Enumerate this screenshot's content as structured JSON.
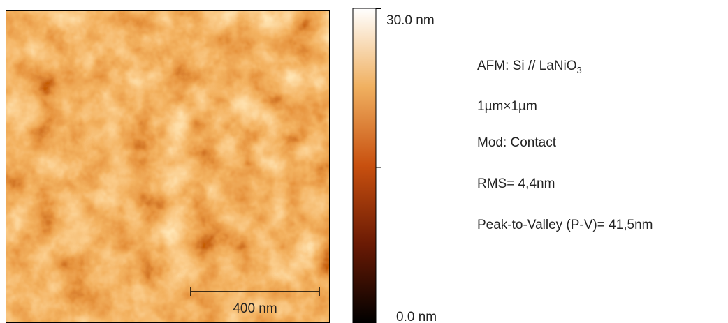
{
  "image": {
    "scale_bar_label": "400 nm"
  },
  "colorbar": {
    "max_label": "30.0 nm",
    "min_label": "0.0 nm"
  },
  "info": [
    {
      "text": "AFM: Si // LaNiO",
      "subscript": "3"
    },
    {
      "text": "1µm×1µm"
    },
    {
      "text": "Mod: Contact"
    },
    {
      "text": "RMS= 4,4nm"
    },
    {
      "text": "Peak-to-Valley (P-V)= 41,5nm"
    }
  ]
}
